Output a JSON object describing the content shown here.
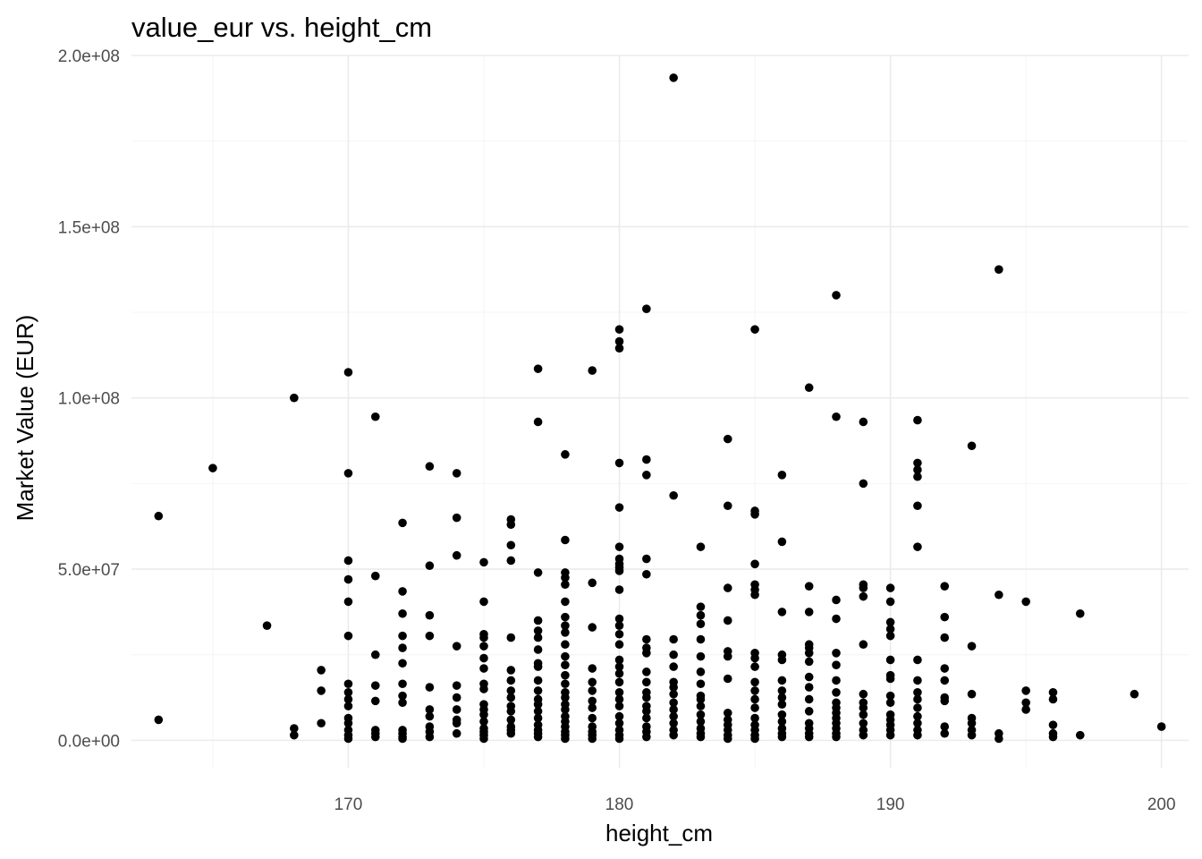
{
  "chart_data": {
    "type": "scatter",
    "title": "value_eur vs. height_cm",
    "xlabel": "height_cm",
    "ylabel": "Market Value (EUR)",
    "xlim": [
      162,
      201
    ],
    "ylim": [
      -8000000,
      200000000
    ],
    "x_ticks": [
      170,
      180,
      190,
      200
    ],
    "x_tick_labels": [
      "170",
      "180",
      "190",
      "200"
    ],
    "y_ticks": [
      0,
      50000000,
      100000000,
      150000000,
      200000000
    ],
    "y_tick_labels": [
      "0.0e+00",
      "5.0e+07",
      "1.0e+08",
      "1.5e+08",
      "2.0e+08"
    ],
    "grid": true,
    "point_color": "#000000",
    "points": [
      [
        163,
        65500000
      ],
      [
        163,
        6000000
      ],
      [
        165,
        79500000
      ],
      [
        167,
        33500000
      ],
      [
        168,
        100000000
      ],
      [
        168,
        3500000
      ],
      [
        168,
        1500000
      ],
      [
        169,
        20500000
      ],
      [
        169,
        14500000
      ],
      [
        169,
        5000000
      ],
      [
        170,
        107500000
      ],
      [
        170,
        78000000
      ],
      [
        170,
        52500000
      ],
      [
        170,
        47000000
      ],
      [
        170,
        40500000
      ],
      [
        170,
        30500000
      ],
      [
        170,
        16500000
      ],
      [
        170,
        14000000
      ],
      [
        170,
        12000000
      ],
      [
        170,
        10000000
      ],
      [
        170,
        6500000
      ],
      [
        170,
        5000000
      ],
      [
        170,
        3000000
      ],
      [
        170,
        1500000
      ],
      [
        170,
        500000
      ],
      [
        171,
        94500000
      ],
      [
        171,
        48000000
      ],
      [
        171,
        25000000
      ],
      [
        171,
        16000000
      ],
      [
        171,
        11500000
      ],
      [
        171,
        3000000
      ],
      [
        171,
        2000000
      ],
      [
        171,
        1000000
      ],
      [
        172,
        63500000
      ],
      [
        172,
        43500000
      ],
      [
        172,
        37000000
      ],
      [
        172,
        30500000
      ],
      [
        172,
        27000000
      ],
      [
        172,
        22500000
      ],
      [
        172,
        16500000
      ],
      [
        172,
        13000000
      ],
      [
        172,
        11000000
      ],
      [
        172,
        3000000
      ],
      [
        172,
        2000000
      ],
      [
        172,
        1000000
      ],
      [
        172,
        500000
      ],
      [
        173,
        80000000
      ],
      [
        173,
        51000000
      ],
      [
        173,
        36500000
      ],
      [
        173,
        30500000
      ],
      [
        173,
        15500000
      ],
      [
        173,
        9000000
      ],
      [
        173,
        7000000
      ],
      [
        173,
        4000000
      ],
      [
        173,
        2500000
      ],
      [
        173,
        1000000
      ],
      [
        174,
        78000000
      ],
      [
        174,
        65000000
      ],
      [
        174,
        54000000
      ],
      [
        174,
        27500000
      ],
      [
        174,
        16000000
      ],
      [
        174,
        12500000
      ],
      [
        174,
        9000000
      ],
      [
        174,
        6000000
      ],
      [
        174,
        5000000
      ],
      [
        174,
        2000000
      ],
      [
        175,
        52000000
      ],
      [
        175,
        40500000
      ],
      [
        175,
        31000000
      ],
      [
        175,
        30000000
      ],
      [
        175,
        27500000
      ],
      [
        175,
        24000000
      ],
      [
        175,
        21000000
      ],
      [
        175,
        16500000
      ],
      [
        175,
        15000000
      ],
      [
        175,
        10500000
      ],
      [
        175,
        9000000
      ],
      [
        175,
        7500000
      ],
      [
        175,
        5500000
      ],
      [
        175,
        3500000
      ],
      [
        175,
        2500000
      ],
      [
        175,
        1500000
      ],
      [
        175,
        500000
      ],
      [
        176,
        64500000
      ],
      [
        176,
        63000000
      ],
      [
        176,
        57000000
      ],
      [
        176,
        52500000
      ],
      [
        176,
        30000000
      ],
      [
        176,
        20500000
      ],
      [
        176,
        17500000
      ],
      [
        176,
        14500000
      ],
      [
        176,
        12500000
      ],
      [
        176,
        10000000
      ],
      [
        176,
        8500000
      ],
      [
        176,
        6000000
      ],
      [
        176,
        4000000
      ],
      [
        176,
        3000000
      ],
      [
        176,
        2000000
      ],
      [
        177,
        108500000
      ],
      [
        177,
        93000000
      ],
      [
        177,
        49000000
      ],
      [
        177,
        35000000
      ],
      [
        177,
        32000000
      ],
      [
        177,
        30000000
      ],
      [
        177,
        26500000
      ],
      [
        177,
        22500000
      ],
      [
        177,
        21500000
      ],
      [
        177,
        17500000
      ],
      [
        177,
        14500000
      ],
      [
        177,
        12000000
      ],
      [
        177,
        10500000
      ],
      [
        177,
        8500000
      ],
      [
        177,
        6500000
      ],
      [
        177,
        4500000
      ],
      [
        177,
        3000000
      ],
      [
        177,
        2000000
      ],
      [
        177,
        1000000
      ],
      [
        178,
        83500000
      ],
      [
        178,
        58500000
      ],
      [
        178,
        49000000
      ],
      [
        178,
        47500000
      ],
      [
        178,
        45500000
      ],
      [
        178,
        40500000
      ],
      [
        178,
        36000000
      ],
      [
        178,
        33500000
      ],
      [
        178,
        31500000
      ],
      [
        178,
        28000000
      ],
      [
        178,
        24500000
      ],
      [
        178,
        22000000
      ],
      [
        178,
        19000000
      ],
      [
        178,
        16500000
      ],
      [
        178,
        14000000
      ],
      [
        178,
        12500000
      ],
      [
        178,
        10500000
      ],
      [
        178,
        9000000
      ],
      [
        178,
        7000000
      ],
      [
        178,
        5500000
      ],
      [
        178,
        4000000
      ],
      [
        178,
        2500000
      ],
      [
        178,
        1500000
      ],
      [
        178,
        500000
      ],
      [
        179,
        108000000
      ],
      [
        179,
        46000000
      ],
      [
        179,
        33000000
      ],
      [
        179,
        21000000
      ],
      [
        179,
        17000000
      ],
      [
        179,
        14500000
      ],
      [
        179,
        11500000
      ],
      [
        179,
        9500000
      ],
      [
        179,
        6500000
      ],
      [
        179,
        4000000
      ],
      [
        179,
        2500000
      ],
      [
        179,
        1500000
      ],
      [
        179,
        500000
      ],
      [
        180,
        120000000
      ],
      [
        180,
        116500000
      ],
      [
        180,
        114500000
      ],
      [
        180,
        81000000
      ],
      [
        180,
        68000000
      ],
      [
        180,
        56500000
      ],
      [
        180,
        53000000
      ],
      [
        180,
        51500000
      ],
      [
        180,
        50500000
      ],
      [
        180,
        49500000
      ],
      [
        180,
        44000000
      ],
      [
        180,
        35500000
      ],
      [
        180,
        33500000
      ],
      [
        180,
        31000000
      ],
      [
        180,
        28000000
      ],
      [
        180,
        23500000
      ],
      [
        180,
        21500000
      ],
      [
        180,
        19500000
      ],
      [
        180,
        17000000
      ],
      [
        180,
        14000000
      ],
      [
        180,
        12000000
      ],
      [
        180,
        10000000
      ],
      [
        180,
        7000000
      ],
      [
        180,
        5000000
      ],
      [
        180,
        3000000
      ],
      [
        180,
        1500000
      ],
      [
        180,
        500000
      ],
      [
        181,
        126000000
      ],
      [
        181,
        82000000
      ],
      [
        181,
        77500000
      ],
      [
        181,
        53000000
      ],
      [
        181,
        48500000
      ],
      [
        181,
        29500000
      ],
      [
        181,
        27000000
      ],
      [
        181,
        25500000
      ],
      [
        181,
        20000000
      ],
      [
        181,
        17000000
      ],
      [
        181,
        14000000
      ],
      [
        181,
        12500000
      ],
      [
        181,
        10000000
      ],
      [
        181,
        8500000
      ],
      [
        181,
        6500000
      ],
      [
        181,
        4000000
      ],
      [
        181,
        2500000
      ],
      [
        181,
        1000000
      ],
      [
        182,
        193500000
      ],
      [
        182,
        71500000
      ],
      [
        182,
        29500000
      ],
      [
        182,
        25000000
      ],
      [
        182,
        21500000
      ],
      [
        182,
        17000000
      ],
      [
        182,
        15500000
      ],
      [
        182,
        13500000
      ],
      [
        182,
        11000000
      ],
      [
        182,
        9000000
      ],
      [
        182,
        7000000
      ],
      [
        182,
        5000000
      ],
      [
        182,
        3000000
      ],
      [
        182,
        1500000
      ],
      [
        183,
        56500000
      ],
      [
        183,
        39000000
      ],
      [
        183,
        36500000
      ],
      [
        183,
        34000000
      ],
      [
        183,
        29500000
      ],
      [
        183,
        24500000
      ],
      [
        183,
        20000000
      ],
      [
        183,
        16500000
      ],
      [
        183,
        13000000
      ],
      [
        183,
        12000000
      ],
      [
        183,
        10000000
      ],
      [
        183,
        7500000
      ],
      [
        183,
        5500000
      ],
      [
        183,
        3500000
      ],
      [
        183,
        2000000
      ],
      [
        183,
        1000000
      ],
      [
        184,
        88000000
      ],
      [
        184,
        68500000
      ],
      [
        184,
        44500000
      ],
      [
        184,
        35000000
      ],
      [
        184,
        26000000
      ],
      [
        184,
        24500000
      ],
      [
        184,
        18000000
      ],
      [
        184,
        8000000
      ],
      [
        184,
        6000000
      ],
      [
        184,
        4500000
      ],
      [
        184,
        3000000
      ],
      [
        184,
        1500000
      ],
      [
        184,
        500000
      ],
      [
        185,
        120000000
      ],
      [
        185,
        67000000
      ],
      [
        185,
        66000000
      ],
      [
        185,
        51500000
      ],
      [
        185,
        45500000
      ],
      [
        185,
        44000000
      ],
      [
        185,
        42500000
      ],
      [
        185,
        25500000
      ],
      [
        185,
        24000000
      ],
      [
        185,
        21500000
      ],
      [
        185,
        17000000
      ],
      [
        185,
        14500000
      ],
      [
        185,
        12000000
      ],
      [
        185,
        9500000
      ],
      [
        185,
        6500000
      ],
      [
        185,
        4500000
      ],
      [
        185,
        3000000
      ],
      [
        185,
        1500000
      ],
      [
        185,
        500000
      ],
      [
        186,
        77500000
      ],
      [
        186,
        58000000
      ],
      [
        186,
        37500000
      ],
      [
        186,
        25000000
      ],
      [
        186,
        23500000
      ],
      [
        186,
        17500000
      ],
      [
        186,
        14500000
      ],
      [
        186,
        12500000
      ],
      [
        186,
        10500000
      ],
      [
        186,
        7500000
      ],
      [
        186,
        5500000
      ],
      [
        186,
        3500000
      ],
      [
        186,
        2000000
      ],
      [
        186,
        1000000
      ],
      [
        187,
        103000000
      ],
      [
        187,
        45000000
      ],
      [
        187,
        37500000
      ],
      [
        187,
        28000000
      ],
      [
        187,
        27000000
      ],
      [
        187,
        25500000
      ],
      [
        187,
        23000000
      ],
      [
        187,
        18500000
      ],
      [
        187,
        15500000
      ],
      [
        187,
        12000000
      ],
      [
        187,
        8500000
      ],
      [
        187,
        5000000
      ],
      [
        187,
        3500000
      ],
      [
        187,
        2000000
      ],
      [
        187,
        1000000
      ],
      [
        188,
        130000000
      ],
      [
        188,
        94500000
      ],
      [
        188,
        41000000
      ],
      [
        188,
        35500000
      ],
      [
        188,
        25500000
      ],
      [
        188,
        22000000
      ],
      [
        188,
        17500000
      ],
      [
        188,
        14000000
      ],
      [
        188,
        11000000
      ],
      [
        188,
        9500000
      ],
      [
        188,
        8000000
      ],
      [
        188,
        6500000
      ],
      [
        188,
        5000000
      ],
      [
        188,
        3500000
      ],
      [
        188,
        2000000
      ],
      [
        188,
        1000000
      ],
      [
        189,
        93000000
      ],
      [
        189,
        75000000
      ],
      [
        189,
        45500000
      ],
      [
        189,
        44500000
      ],
      [
        189,
        42000000
      ],
      [
        189,
        28000000
      ],
      [
        189,
        13500000
      ],
      [
        189,
        11000000
      ],
      [
        189,
        9500000
      ],
      [
        189,
        7500000
      ],
      [
        189,
        5000000
      ],
      [
        189,
        3000000
      ],
      [
        189,
        1500000
      ],
      [
        190,
        44500000
      ],
      [
        190,
        40500000
      ],
      [
        190,
        34500000
      ],
      [
        190,
        32500000
      ],
      [
        190,
        30500000
      ],
      [
        190,
        23500000
      ],
      [
        190,
        19000000
      ],
      [
        190,
        18000000
      ],
      [
        190,
        13000000
      ],
      [
        190,
        11000000
      ],
      [
        190,
        7500000
      ],
      [
        190,
        6000000
      ],
      [
        190,
        4500000
      ],
      [
        190,
        3000000
      ],
      [
        190,
        1500000
      ],
      [
        191,
        93500000
      ],
      [
        191,
        81000000
      ],
      [
        191,
        79000000
      ],
      [
        191,
        77000000
      ],
      [
        191,
        68500000
      ],
      [
        191,
        56500000
      ],
      [
        191,
        23500000
      ],
      [
        191,
        17500000
      ],
      [
        191,
        14000000
      ],
      [
        191,
        12000000
      ],
      [
        191,
        9500000
      ],
      [
        191,
        7000000
      ],
      [
        191,
        5000000
      ],
      [
        191,
        3000000
      ],
      [
        191,
        1500000
      ],
      [
        192,
        45000000
      ],
      [
        192,
        36000000
      ],
      [
        192,
        30000000
      ],
      [
        192,
        21000000
      ],
      [
        192,
        17500000
      ],
      [
        192,
        12500000
      ],
      [
        192,
        11500000
      ],
      [
        192,
        4000000
      ],
      [
        192,
        2000000
      ],
      [
        193,
        86000000
      ],
      [
        193,
        27500000
      ],
      [
        193,
        13500000
      ],
      [
        193,
        6500000
      ],
      [
        193,
        5000000
      ],
      [
        193,
        3000000
      ],
      [
        193,
        1500000
      ],
      [
        194,
        137500000
      ],
      [
        194,
        42500000
      ],
      [
        194,
        2000000
      ],
      [
        194,
        500000
      ],
      [
        195,
        40500000
      ],
      [
        195,
        14500000
      ],
      [
        195,
        11000000
      ],
      [
        195,
        9000000
      ],
      [
        196,
        14000000
      ],
      [
        196,
        12000000
      ],
      [
        196,
        4500000
      ],
      [
        196,
        2000000
      ],
      [
        196,
        1000000
      ],
      [
        197,
        37000000
      ],
      [
        197,
        1500000
      ],
      [
        199,
        13500000
      ],
      [
        200,
        4000000
      ]
    ]
  }
}
